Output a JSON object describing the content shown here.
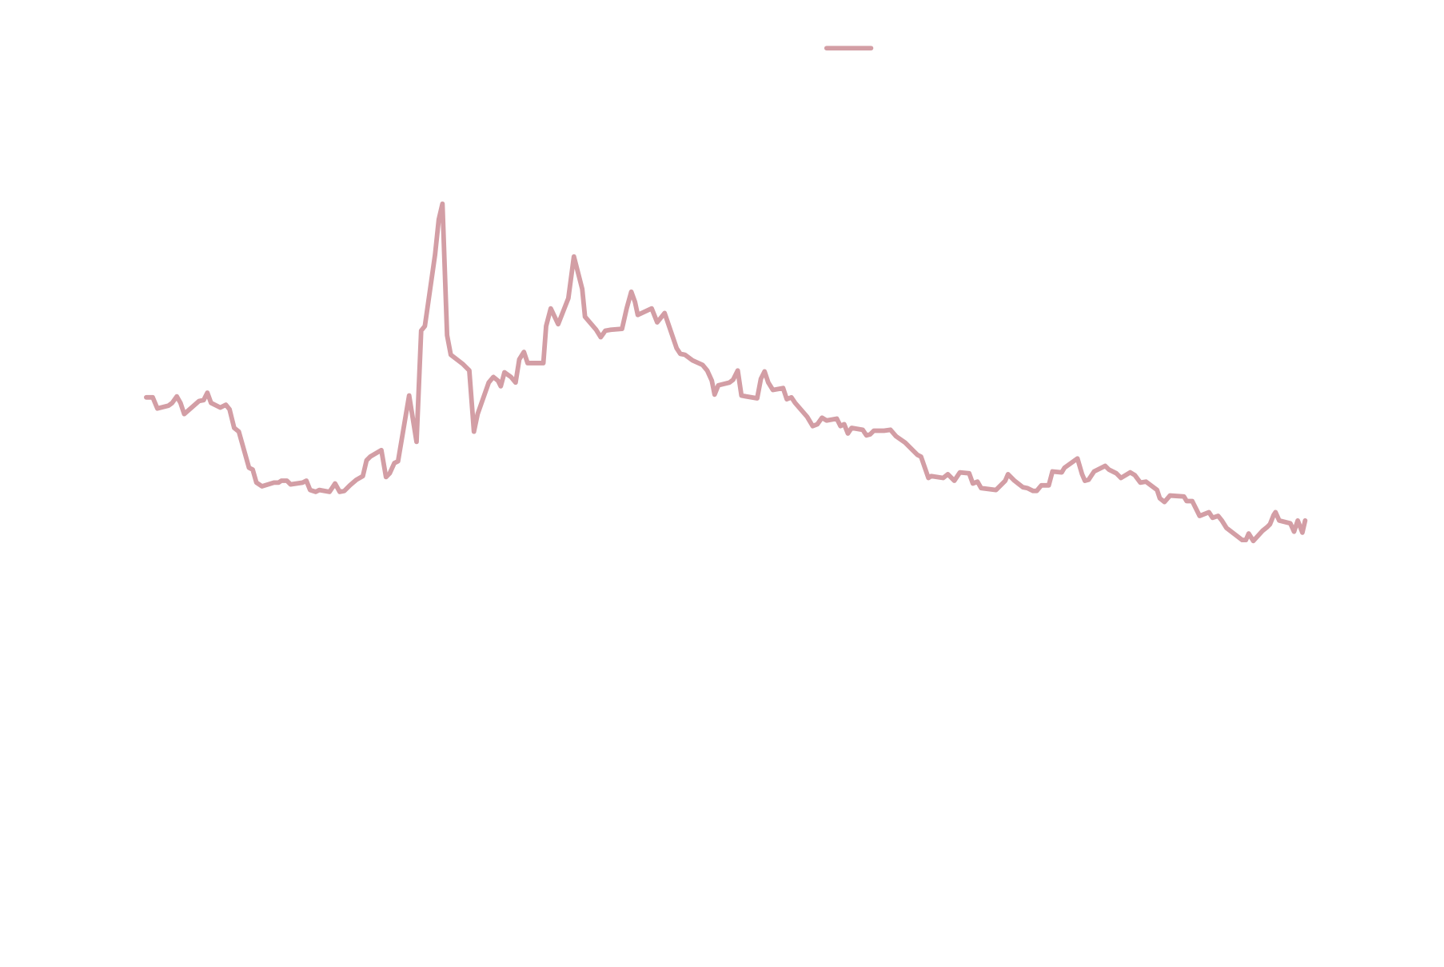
{
  "chart_data": {
    "type": "line",
    "x": [
      158,
      165,
      170,
      182,
      186,
      191,
      195,
      199,
      207,
      215,
      220,
      224,
      228,
      238,
      244,
      248,
      253,
      258,
      269,
      273,
      277,
      283,
      296,
      301,
      304,
      310,
      314,
      327,
      331,
      335,
      341,
      345,
      356,
      362,
      367,
      372,
      378,
      385,
      392,
      396,
      400,
      412,
      417,
      421,
      426,
      430,
      442,
      450,
      455,
      459,
      470,
      474,
      478,
      483,
      487,
      500,
      507,
      512,
      516,
      528,
      533,
      538,
      541,
      545,
      552,
      557,
      561,
      566,
      570,
      587,
      590,
      595,
      603,
      614,
      620,
      629,
      632,
      644,
      649,
      654,
      660,
      672,
      677,
      682,
      686,
      689,
      704,
      710,
      718,
      731,
      735,
      740,
      748,
      759,
      764,
      769,
      772,
      776,
      788,
      792,
      797,
      801,
      806,
      818,
      822,
      826,
      830,
      835,
      846,
      850,
      855,
      859,
      872,
      878,
      883,
      888,
      893,
      904,
      908,
      912,
      916,
      920,
      932,
      936,
      940,
      944,
      955,
      962,
      968,
      978,
      986,
      991,
      995,
      1003,
      1006,
      1019,
      1024,
      1031,
      1037,
      1047,
      1051,
      1056,
      1060,
      1076,
      1082,
      1086,
      1089,
      1096,
      1105,
      1110,
      1116,
      1120,
      1125,
      1133,
      1137,
      1147,
      1150,
      1164,
      1169,
      1172,
      1176,
      1182,
      1194,
      1198,
      1206,
      1211,
      1221,
      1226,
      1232,
      1238,
      1250,
      1253,
      1258,
      1264,
      1279,
      1282,
      1288,
      1296,
      1306,
      1310,
      1316,
      1320,
      1325,
      1342,
      1346,
      1349,
      1354,
      1364,
      1369,
      1372,
      1376,
      1378,
      1382,
      1394,
      1398,
      1402,
      1407,
      1410
    ],
    "series": [
      {
        "color": "#d39ea5",
        "values": [
          571,
          571,
          559,
          562,
          565,
          572,
          565,
          553,
          560,
          567,
          568,
          576,
          565,
          560,
          563,
          558,
          538,
          534,
          495,
          493,
          479,
          475,
          479,
          479,
          481,
          481,
          477,
          479,
          481,
          471,
          469,
          471,
          469,
          478,
          469,
          470,
          476,
          482,
          486,
          503,
          507,
          514,
          485,
          489,
          500,
          502,
          573,
          523,
          643,
          648,
          725,
          763,
          780,
          638,
          617,
          607,
          600,
          534,
          553,
          587,
          593,
          589,
          583,
          598,
          593,
          587,
          612,
          620,
          608,
          608,
          648,
          667,
          650,
          678,
          723,
          688,
          658,
          644,
          636,
          643,
          644,
          645,
          667,
          685,
          674,
          660,
          667,
          652,
          662,
          624,
          618,
          617,
          611,
          606,
          600,
          589,
          574,
          584,
          587,
          590,
          600,
          573,
          572,
          570,
          591,
          599,
          587,
          579,
          581,
          569,
          571,
          565,
          550,
          540,
          542,
          549,
          546,
          548,
          540,
          542,
          532,
          538,
          536,
          530,
          531,
          535,
          535,
          536,
          529,
          522,
          514,
          509,
          507,
          484,
          486,
          484,
          488,
          481,
          490,
          489,
          478,
          480,
          473,
          471,
          477,
          481,
          488,
          481,
          474,
          473,
          470,
          470,
          476,
          476,
          491,
          490,
          495,
          505,
          488,
          481,
          482,
          491,
          497,
          493,
          489,
          484,
          490,
          487,
          479,
          480,
          471,
          462,
          458,
          465,
          464,
          459,
          459,
          443,
          447,
          441,
          443,
          438,
          430,
          417,
          417,
          424,
          416,
          427,
          431,
          434,
          444,
          447,
          438,
          435,
          426,
          438,
          425,
          438
        ]
      }
    ],
    "xlim": [
      158,
      1410
    ],
    "ylim": [
      -44,
      1000
    ],
    "legend": "top"
  }
}
